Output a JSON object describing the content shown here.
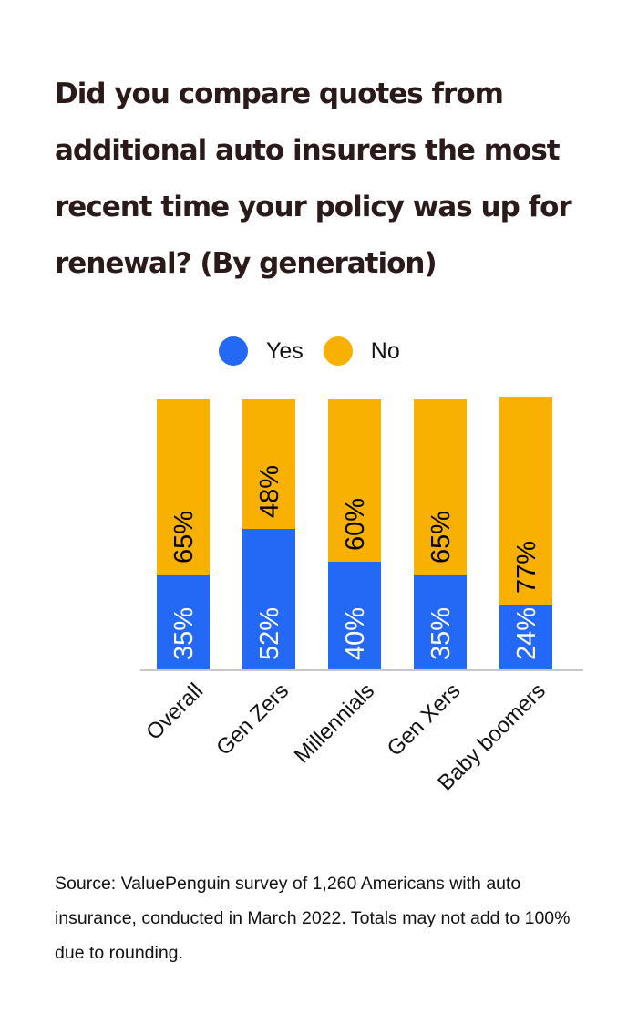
{
  "title": "Did you compare quotes from additional auto insurers the most recent time your policy was up for renewal? (By generation)",
  "legend": [
    {
      "label": "Yes",
      "color": "#2369F6"
    },
    {
      "label": "No",
      "color": "#F8B100"
    }
  ],
  "source": "Source: ValuePenguin survey of 1,260 Americans with auto insurance, conducted in March 2022. Totals may not add to 100% due to rounding.",
  "chart_data": {
    "type": "bar",
    "stacked": true,
    "title": "Did you compare quotes from additional auto insurers the most recent time your policy was up for renewal? (By generation)",
    "categories": [
      "Overall",
      "Gen Zers",
      "Millennials",
      "Gen Xers",
      "Baby boomers"
    ],
    "series": [
      {
        "name": "Yes",
        "color": "#2369F6",
        "values": [
          35,
          52,
          40,
          35,
          24
        ],
        "labels": [
          "35%",
          "52%",
          "40%",
          "35%",
          "24%"
        ]
      },
      {
        "name": "No",
        "color": "#F8B100",
        "values": [
          65,
          48,
          60,
          65,
          77
        ],
        "labels": [
          "65%",
          "48%",
          "60%",
          "65%",
          "77%"
        ]
      }
    ],
    "xlabel": "",
    "ylabel": "",
    "ylim": [
      0,
      100
    ],
    "grid": false,
    "legend_position": "top",
    "value_label_rotation": -90,
    "category_label_rotation": -45,
    "note": "Source: ValuePenguin survey of 1,260 Americans with auto insurance, conducted in March 2022. Totals may not add to 100% due to rounding."
  }
}
